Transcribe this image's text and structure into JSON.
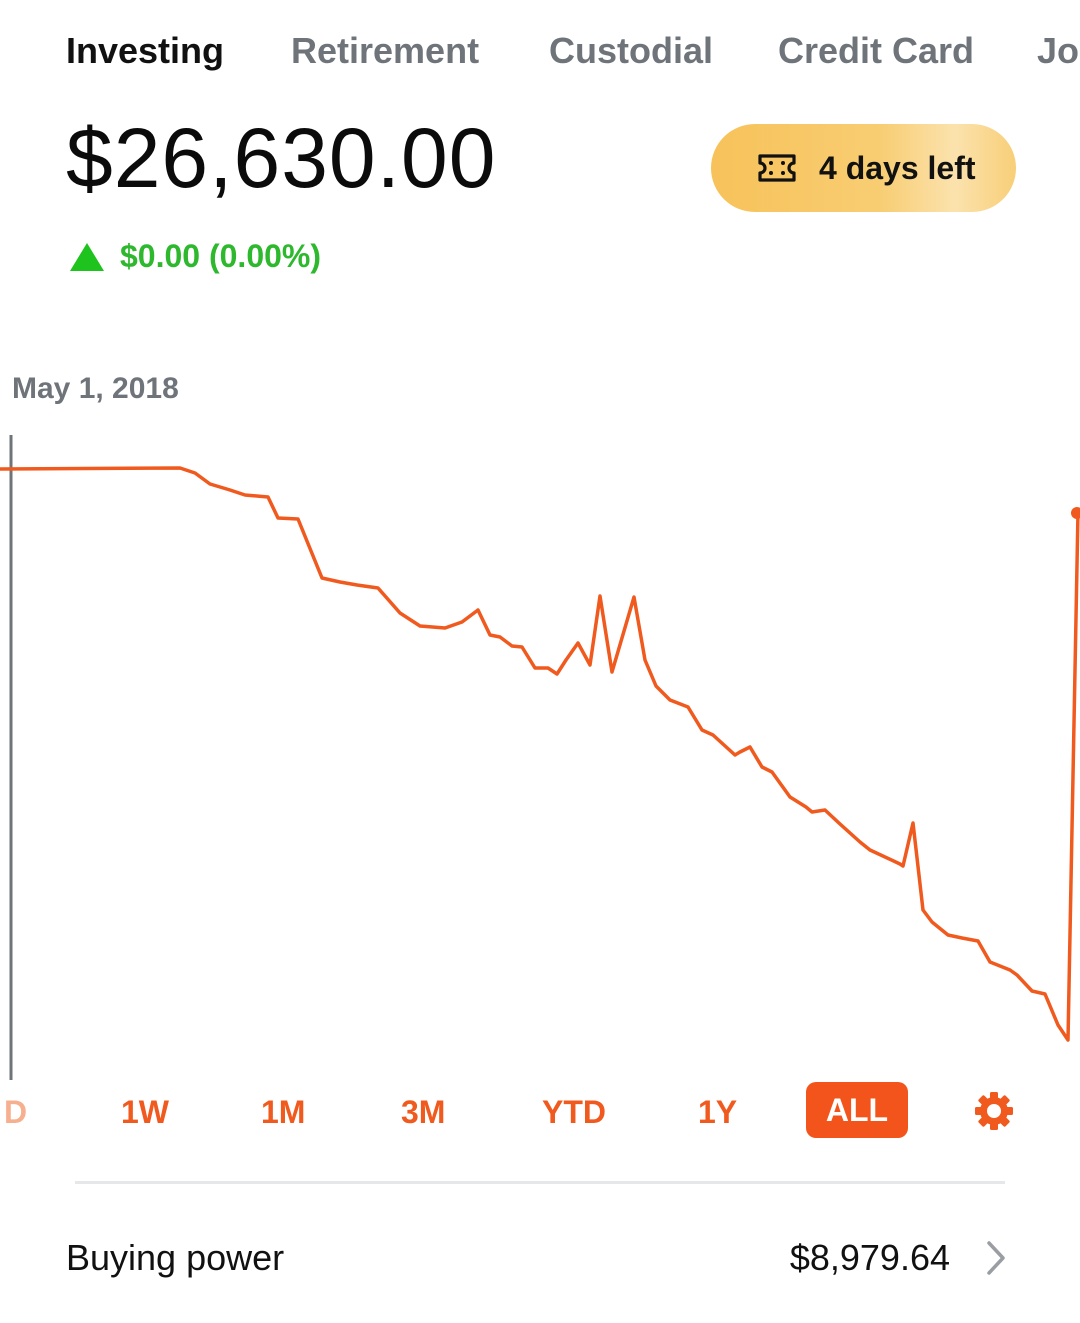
{
  "tabs": [
    {
      "label": "Investing",
      "active": true
    },
    {
      "label": "Retirement",
      "active": false
    },
    {
      "label": "Custodial",
      "active": false
    },
    {
      "label": "Credit Card",
      "active": false
    },
    {
      "label": "Joi",
      "active": false
    }
  ],
  "portfolio": {
    "balance": "$26,630.00",
    "change": "$0.00 (0.00%)",
    "change_direction": "up"
  },
  "trial": {
    "label": "4 days left",
    "icon": "ticket-icon"
  },
  "chart": {
    "date_label": "May 1, 2018",
    "line_color": "#f05a1e",
    "scrubber_color": "#6e747a"
  },
  "ranges": {
    "items": [
      "D",
      "1W",
      "1M",
      "3M",
      "YTD",
      "1Y",
      "ALL"
    ],
    "active": "ALL",
    "settings_icon": "gear-icon"
  },
  "buying_power": {
    "label": "Buying power",
    "value": "$8,979.64"
  },
  "colors": {
    "accent": "#f2541b",
    "positive": "#2db82d",
    "trial_gold": "#f7c25a"
  }
}
